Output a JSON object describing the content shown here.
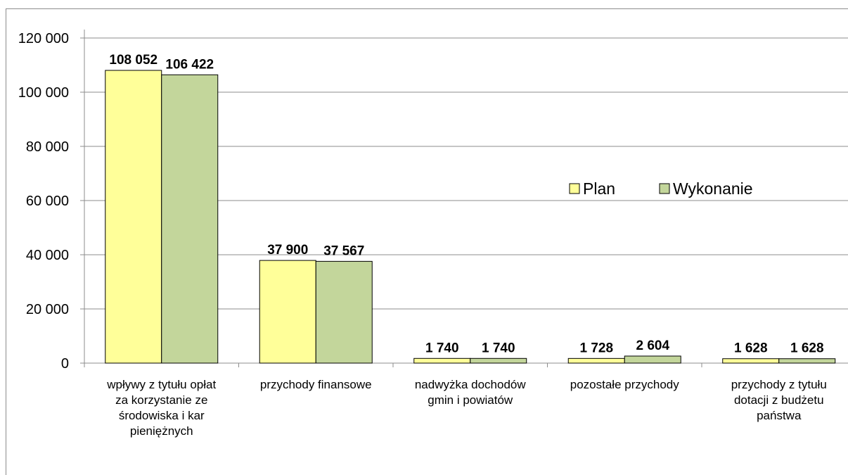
{
  "chart_data": {
    "type": "bar",
    "categories": [
      [
        "wpływy z tytułu opłat",
        "za korzystanie ze",
        "środowiska i kar",
        "pieniężnych"
      ],
      [
        "przychody finansowe"
      ],
      [
        "nadwyżka dochodów",
        "gmin i powiatów"
      ],
      [
        "pozostałe przychody"
      ],
      [
        "przychody z tytułu",
        "dotacji z budżetu",
        "państwa"
      ]
    ],
    "series": [
      {
        "name": "Plan",
        "color": "#ffff99",
        "values": [
          108052,
          37900,
          1740,
          1728,
          1628
        ],
        "labels": [
          "108 052",
          "37 900",
          "1 740",
          "1 728",
          "1 628"
        ]
      },
      {
        "name": "Wykonanie",
        "color": "#c3d69b",
        "values": [
          106422,
          37567,
          1740,
          2604,
          1628
        ],
        "labels": [
          "106 422",
          "37 567",
          "1 740",
          "2 604",
          "1 628"
        ]
      }
    ],
    "ylim": [
      0,
      120000
    ],
    "yticks": [
      0,
      20000,
      40000,
      60000,
      80000,
      100000,
      120000
    ],
    "ytick_labels": [
      "0",
      "20 000",
      "40 000",
      "60 000",
      "80 000",
      "100 000",
      "120 000"
    ],
    "grid": true,
    "legend_position": "right"
  }
}
